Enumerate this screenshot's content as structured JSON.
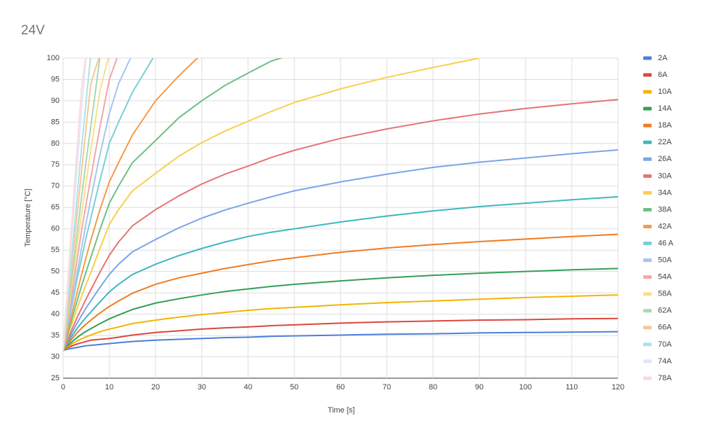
{
  "chart_data": {
    "type": "line",
    "title": "24V",
    "x_label": "Time [s]",
    "y_label": "Temperature [°C]",
    "x": [
      0,
      1,
      2,
      3,
      4,
      5,
      6,
      8,
      10,
      12,
      15,
      20,
      25,
      30,
      35,
      40,
      45,
      50,
      60,
      70,
      80,
      90,
      100,
      110,
      120
    ],
    "xlim": [
      0,
      120
    ],
    "xticks": [
      0,
      10,
      20,
      30,
      40,
      50,
      60,
      70,
      80,
      90,
      100,
      110,
      120
    ],
    "ylim": [
      25,
      100
    ],
    "yticks": [
      25,
      30,
      35,
      40,
      45,
      50,
      55,
      60,
      65,
      70,
      75,
      80,
      85,
      90,
      95,
      100
    ],
    "grid": true,
    "legend": "right",
    "series": [
      {
        "name": "2A",
        "color": "#4a7fd9",
        "values": [
          31.5,
          31.8,
          32.0,
          32.2,
          32.4,
          32.6,
          32.7,
          32.9,
          33.1,
          33.3,
          33.6,
          33.9,
          34.1,
          34.3,
          34.5,
          34.6,
          34.8,
          34.9,
          35.1,
          35.3,
          35.4,
          35.6,
          35.7,
          35.8,
          35.9
        ]
      },
      {
        "name": "6A",
        "color": "#d9473c",
        "values": [
          31.5,
          32.1,
          32.6,
          33.0,
          33.3,
          33.6,
          33.9,
          34.1,
          34.3,
          34.6,
          35.1,
          35.7,
          36.1,
          36.5,
          36.8,
          37.0,
          37.3,
          37.5,
          37.9,
          38.2,
          38.4,
          38.6,
          38.7,
          38.9,
          39.0
        ]
      },
      {
        "name": "10A",
        "color": "#f4b400",
        "values": [
          31.5,
          32.3,
          33.1,
          33.7,
          34.2,
          34.7,
          35.1,
          35.9,
          36.5,
          37.0,
          37.8,
          38.6,
          39.3,
          39.9,
          40.4,
          40.9,
          41.3,
          41.6,
          42.2,
          42.7,
          43.1,
          43.5,
          43.9,
          44.2,
          44.5
        ]
      },
      {
        "name": "14A",
        "color": "#339f55",
        "values": [
          31.5,
          32.6,
          33.6,
          34.5,
          35.3,
          36.0,
          36.6,
          37.8,
          38.9,
          39.8,
          41.1,
          42.6,
          43.6,
          44.5,
          45.3,
          45.9,
          46.5,
          47.0,
          47.8,
          48.5,
          49.1,
          49.6,
          50.0,
          50.4,
          50.7
        ]
      },
      {
        "name": "18A",
        "color": "#f27b20",
        "values": [
          31.5,
          33.0,
          34.3,
          35.6,
          36.7,
          37.7,
          38.6,
          40.3,
          41.8,
          43.1,
          44.9,
          47.0,
          48.5,
          49.6,
          50.7,
          51.6,
          52.5,
          53.2,
          54.5,
          55.5,
          56.3,
          57.0,
          57.6,
          58.2,
          58.7
        ]
      },
      {
        "name": "22A",
        "color": "#40b6c0",
        "values": [
          31.5,
          33.3,
          35.0,
          36.6,
          38.0,
          39.3,
          40.5,
          42.9,
          45.2,
          47.0,
          49.3,
          51.7,
          53.7,
          55.4,
          56.9,
          58.2,
          59.2,
          60.0,
          61.6,
          63.0,
          64.2,
          65.2,
          66.0,
          66.8,
          67.5
        ]
      },
      {
        "name": "26A",
        "color": "#7ba4e8",
        "values": [
          31.5,
          33.7,
          35.8,
          37.8,
          39.7,
          41.5,
          43.1,
          46.3,
          49.3,
          51.7,
          54.6,
          57.5,
          60.2,
          62.5,
          64.4,
          66.0,
          67.5,
          68.9,
          71.0,
          72.8,
          74.4,
          75.6,
          76.6,
          77.6,
          78.5
        ]
      },
      {
        "name": "30A",
        "color": "#e57373",
        "values": [
          31.5,
          34.0,
          36.6,
          39.1,
          41.4,
          43.6,
          45.7,
          49.9,
          53.8,
          56.9,
          60.7,
          64.5,
          67.7,
          70.5,
          72.8,
          74.7,
          76.7,
          78.4,
          81.2,
          83.4,
          85.3,
          86.9,
          88.2,
          89.3,
          90.3
        ]
      },
      {
        "name": "34A",
        "color": "#f7d04e",
        "values": [
          31.5,
          34.8,
          38.0,
          41.2,
          44.2,
          47.0,
          49.7,
          55.5,
          61.0,
          64.5,
          68.9,
          73.0,
          77.0,
          80.2,
          82.9,
          85.2,
          87.5,
          89.6,
          92.8,
          95.5,
          97.8,
          100.0,
          null,
          null,
          null
        ]
      },
      {
        "name": "38A",
        "color": "#6fbf86",
        "values": [
          31.5,
          35.3,
          39.2,
          43.0,
          46.6,
          50.0,
          53.3,
          59.9,
          66.0,
          70.0,
          75.5,
          80.7,
          86.0,
          90.0,
          93.6,
          96.5,
          99.3,
          101.0,
          null,
          null,
          null,
          null,
          null,
          null,
          null
        ]
      },
      {
        "name": "42A",
        "color": "#f59b4a",
        "values": [
          31.5,
          36.0,
          40.5,
          45.0,
          49.3,
          53.4,
          57.3,
          64.6,
          71.0,
          75.5,
          82.0,
          90.0,
          95.8,
          101.0,
          null,
          null,
          null,
          null,
          null,
          null,
          null,
          null,
          null,
          null,
          null
        ]
      },
      {
        "name": "46 A",
        "color": "#79d0d6",
        "values": [
          31.5,
          37.0,
          42.5,
          48.0,
          53.0,
          58.0,
          62.5,
          71.5,
          80.0,
          85.0,
          92.0,
          101.0,
          null,
          null,
          null,
          null,
          null,
          null,
          null,
          null,
          null,
          null,
          null,
          null,
          null
        ]
      },
      {
        "name": "50A",
        "color": "#a8c4f0",
        "values": [
          31.5,
          37.5,
          43.5,
          49.5,
          55.5,
          61.5,
          67.0,
          77.5,
          87.0,
          94.0,
          101.0,
          null,
          null,
          null,
          null,
          null,
          null,
          null,
          null,
          null,
          null,
          null,
          null,
          null,
          null
        ]
      },
      {
        "name": "54A",
        "color": "#f0a8a4",
        "values": [
          31.5,
          38.5,
          45.5,
          52.5,
          59.5,
          66.0,
          72.0,
          84.0,
          95.0,
          101.0,
          null,
          null,
          null,
          null,
          null,
          null,
          null,
          null,
          null,
          null,
          null,
          null,
          null,
          null,
          null
        ]
      },
      {
        "name": "58A",
        "color": "#fade8a",
        "values": [
          31.5,
          39.5,
          47.5,
          55.5,
          63.5,
          71.0,
          78.5,
          92.5,
          101.0,
          null,
          null,
          null,
          null,
          null,
          null,
          null,
          null,
          null,
          null,
          null,
          null,
          null,
          null,
          null,
          null
        ]
      },
      {
        "name": "62A",
        "color": "#a8d8b4",
        "values": [
          31.5,
          40.5,
          49.5,
          58.5,
          67.5,
          76.0,
          84.0,
          100.5,
          null,
          null,
          null,
          null,
          null,
          null,
          null,
          null,
          null,
          null,
          null,
          null,
          null,
          null,
          null,
          null,
          null
        ]
      },
      {
        "name": "66A",
        "color": "#f8c69a",
        "values": [
          31.5,
          42.0,
          52.5,
          63.0,
          73.5,
          84.0,
          94.0,
          101.0,
          null,
          null,
          null,
          null,
          null,
          null,
          null,
          null,
          null,
          null,
          null,
          null,
          null,
          null,
          null,
          null,
          null
        ]
      },
      {
        "name": "70A",
        "color": "#aee2e6",
        "values": [
          31.5,
          43.0,
          55.0,
          67.0,
          79.0,
          90.0,
          101.0,
          null,
          null,
          null,
          null,
          null,
          null,
          null,
          null,
          null,
          null,
          null,
          null,
          null,
          null,
          null,
          null,
          null,
          null
        ]
      },
      {
        "name": "74A",
        "color": "#dce8f9",
        "values": [
          31.5,
          45.0,
          60.0,
          74.0,
          88.0,
          101.0,
          null,
          null,
          null,
          null,
          null,
          null,
          null,
          null,
          null,
          null,
          null,
          null,
          null,
          null,
          null,
          null,
          null,
          null,
          null
        ]
      },
      {
        "name": "78A",
        "color": "#fbdada",
        "values": [
          31.5,
          47.0,
          63.0,
          78.0,
          93.0,
          101.0,
          null,
          null,
          null,
          null,
          null,
          null,
          null,
          null,
          null,
          null,
          null,
          null,
          null,
          null,
          null,
          null,
          null,
          null,
          null
        ]
      }
    ]
  }
}
